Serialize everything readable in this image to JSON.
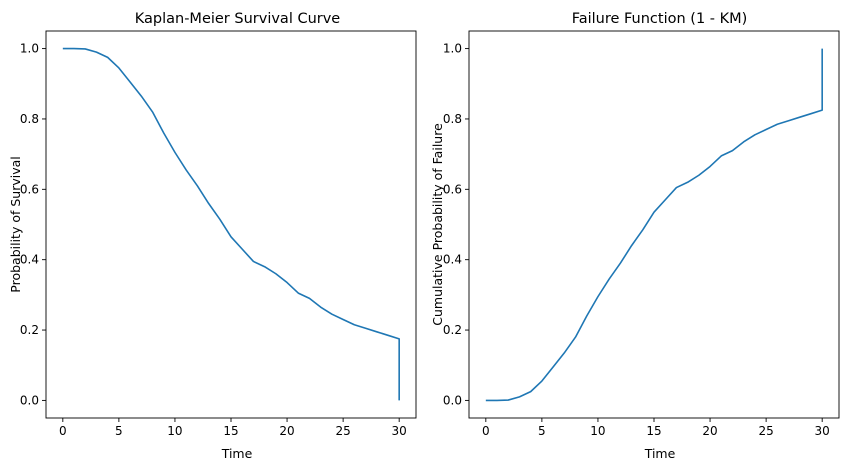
{
  "chart_data": [
    {
      "type": "line",
      "title": "Kaplan-Meier Survival Curve",
      "xlabel": "Time",
      "ylabel": "Probability of Survival",
      "xlim": [
        -1.5,
        31.5
      ],
      "ylim": [
        -0.05,
        1.05
      ],
      "xticks": [
        0,
        5,
        10,
        15,
        20,
        25,
        30
      ],
      "xtick_labels": [
        "0",
        "5",
        "10",
        "15",
        "20",
        "25",
        "30"
      ],
      "yticks": [
        0.0,
        0.2,
        0.4,
        0.6,
        0.8,
        1.0
      ],
      "ytick_labels": [
        "0.0",
        "0.2",
        "0.4",
        "0.6",
        "0.8",
        "1.0"
      ],
      "grid": false,
      "series": [
        {
          "color": "#1f77b4",
          "x": [
            0,
            1,
            2,
            3,
            4,
            5,
            6,
            7,
            8,
            9,
            10,
            11,
            12,
            13,
            14,
            15,
            16,
            17,
            18,
            19,
            20,
            21,
            22,
            23,
            24,
            25,
            26,
            27,
            28,
            29,
            30,
            30
          ],
          "y": [
            1.0,
            1.0,
            0.999,
            0.99,
            0.975,
            0.945,
            0.905,
            0.865,
            0.82,
            0.76,
            0.705,
            0.655,
            0.61,
            0.56,
            0.515,
            0.465,
            0.43,
            0.395,
            0.38,
            0.36,
            0.335,
            0.305,
            0.29,
            0.265,
            0.245,
            0.23,
            0.215,
            0.205,
            0.195,
            0.185,
            0.175,
            0.0
          ]
        }
      ]
    },
    {
      "type": "line",
      "title": "Failure Function (1 - KM)",
      "xlabel": "Time",
      "ylabel": "Cumulative Probability of Failure",
      "xlim": [
        -1.5,
        31.5
      ],
      "ylim": [
        -0.05,
        1.05
      ],
      "xticks": [
        0,
        5,
        10,
        15,
        20,
        25,
        30
      ],
      "xtick_labels": [
        "0",
        "5",
        "10",
        "15",
        "20",
        "25",
        "30"
      ],
      "yticks": [
        0.0,
        0.2,
        0.4,
        0.6,
        0.8,
        1.0
      ],
      "ytick_labels": [
        "0.0",
        "0.2",
        "0.4",
        "0.6",
        "0.8",
        "1.0"
      ],
      "grid": false,
      "series": [
        {
          "color": "#1f77b4",
          "x": [
            0,
            1,
            2,
            3,
            4,
            5,
            6,
            7,
            8,
            9,
            10,
            11,
            12,
            13,
            14,
            15,
            16,
            17,
            18,
            19,
            20,
            21,
            22,
            23,
            24,
            25,
            26,
            27,
            28,
            29,
            30,
            30
          ],
          "y": [
            0.0,
            0.0,
            0.001,
            0.01,
            0.025,
            0.055,
            0.095,
            0.135,
            0.18,
            0.24,
            0.295,
            0.345,
            0.39,
            0.44,
            0.485,
            0.535,
            0.57,
            0.605,
            0.62,
            0.64,
            0.665,
            0.695,
            0.71,
            0.735,
            0.755,
            0.77,
            0.785,
            0.795,
            0.805,
            0.815,
            0.825,
            1.0
          ]
        }
      ]
    }
  ]
}
